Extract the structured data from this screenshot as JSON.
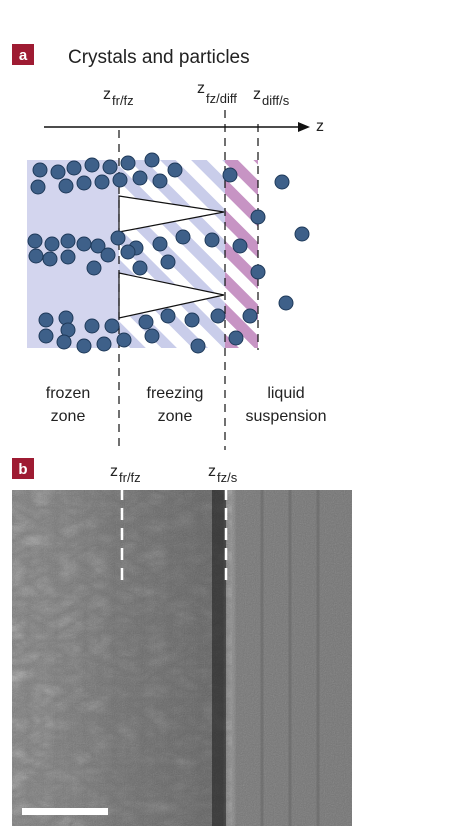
{
  "panel_a": {
    "tag": "a",
    "title": "Crystals and particles",
    "axis_label": "z",
    "markers": [
      {
        "main": "z",
        "sub": "fr/fz"
      },
      {
        "main": "z",
        "sub": "fz/diff"
      },
      {
        "main": "z",
        "sub": "diff/s"
      }
    ],
    "zones": [
      {
        "line1": "frozen",
        "line2": "zone"
      },
      {
        "line1": "freezing",
        "line2": "zone"
      },
      {
        "line1": "liquid",
        "line2": "suspension"
      }
    ]
  },
  "panel_b": {
    "tag": "b",
    "markers": [
      {
        "main": "z",
        "sub": "fr/fz"
      },
      {
        "main": "z",
        "sub": "fz/s"
      }
    ]
  },
  "colors": {
    "tag_bg": "#9e1b32",
    "frozen_fill": "#d3d5ee",
    "stripe_blue": "#c9cdea",
    "stripe_pink": "#c794c4",
    "particle": "#3e6089"
  }
}
